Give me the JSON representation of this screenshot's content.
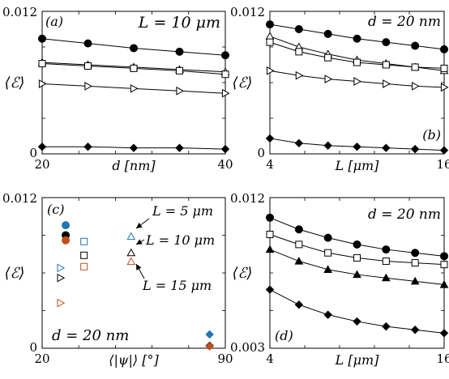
{
  "chart_data": [
    {
      "id": "a",
      "type": "line",
      "panel_label": "(a)",
      "annotation": "L = 10 μm",
      "xlabel": "d [nm]",
      "ylabel": "⟨ℰ⟩",
      "xlim": [
        20,
        40
      ],
      "ylim": [
        0,
        0.012
      ],
      "xticks": [
        "20",
        "40"
      ],
      "yticks": [
        "0",
        "0.012"
      ],
      "grid": false,
      "x": [
        20,
        25,
        30,
        35,
        40
      ],
      "series": [
        {
          "marker": "circle-filled",
          "values": [
            0.0097,
            0.0093,
            0.0089,
            0.0086,
            0.0083
          ]
        },
        {
          "marker": "triangle-up-open",
          "values": [
            0.0077,
            0.0075,
            0.0073,
            0.0071,
            0.0069
          ]
        },
        {
          "marker": "square-open",
          "values": [
            0.0076,
            0.0074,
            0.0072,
            0.007,
            0.0067
          ]
        },
        {
          "marker": "triangle-right-open",
          "values": [
            0.0059,
            0.0057,
            0.0055,
            0.0053,
            0.0051
          ]
        },
        {
          "marker": "diamond-filled",
          "values": [
            0.0006,
            0.0006,
            0.0005,
            0.0005,
            0.0004
          ]
        }
      ]
    },
    {
      "id": "b",
      "type": "line",
      "panel_label": "(b)",
      "annotation": "d = 20 nm",
      "xlabel": "L [μm]",
      "ylabel": "⟨ℰ⟩",
      "xlim": [
        4,
        16
      ],
      "ylim": [
        0,
        0.012
      ],
      "xticks": [
        "4",
        "16"
      ],
      "yticks": [
        "0",
        "0.012"
      ],
      "grid": false,
      "x": [
        4,
        6,
        8,
        10,
        12,
        14,
        16
      ],
      "series": [
        {
          "marker": "circle-filled",
          "values": [
            0.0109,
            0.0105,
            0.0101,
            0.0097,
            0.0094,
            0.0091,
            0.0088
          ]
        },
        {
          "marker": "triangle-up-open",
          "values": [
            0.0099,
            0.009,
            0.0084,
            0.0079,
            0.0076,
            0.0073,
            0.007
          ]
        },
        {
          "marker": "square-open",
          "values": [
            0.0094,
            0.0086,
            0.0081,
            0.0077,
            0.0075,
            0.0073,
            0.0072
          ]
        },
        {
          "marker": "triangle-right-open",
          "values": [
            0.007,
            0.0066,
            0.0063,
            0.0061,
            0.0059,
            0.0057,
            0.0056
          ]
        },
        {
          "marker": "diamond-filled",
          "values": [
            0.0013,
            0.0009,
            0.0007,
            0.0006,
            0.0005,
            0.0004,
            0.0003
          ]
        }
      ]
    },
    {
      "id": "c",
      "type": "scatter",
      "panel_label": "(c)",
      "annotation": "d = 20 nm",
      "xlabel": "⟨|ψ|⟩ [°]",
      "ylabel": "⟨ℰ⟩",
      "xlim": [
        20,
        90
      ],
      "ylim": [
        0,
        0.012
      ],
      "xticks": [
        "20",
        "90"
      ],
      "yticks": [
        "0",
        "0.012"
      ],
      "grid": false,
      "labels": [
        "L = 5 μm",
        "L = 10 μm",
        "L = 15 μm"
      ],
      "series": [
        {
          "marker": "circle-filled",
          "color": "#1f77b4",
          "points": [
            [
              29,
              0.0098
            ]
          ]
        },
        {
          "marker": "circle-filled",
          "color": "#000000",
          "points": [
            [
              29,
              0.009
            ]
          ]
        },
        {
          "marker": "circle-filled",
          "color": "#c0501b",
          "points": [
            [
              29,
              0.0086
            ]
          ]
        },
        {
          "marker": "square-open",
          "color": "#1f77b4",
          "points": [
            [
              36,
              0.0085
            ]
          ]
        },
        {
          "marker": "square-open",
          "color": "#000000",
          "points": [
            [
              36,
              0.0074
            ]
          ]
        },
        {
          "marker": "square-open",
          "color": "#c0501b",
          "points": [
            [
              36,
              0.0065
            ]
          ]
        },
        {
          "marker": "triangle-up-open",
          "color": "#1f77b4",
          "points": [
            [
              54,
              0.0089
            ]
          ]
        },
        {
          "marker": "triangle-up-open",
          "color": "#000000",
          "points": [
            [
              54,
              0.0076
            ]
          ]
        },
        {
          "marker": "triangle-up-open",
          "color": "#c0501b",
          "points": [
            [
              54,
              0.0069
            ]
          ]
        },
        {
          "marker": "triangle-right-open",
          "color": "#1f77b4",
          "points": [
            [
              27,
              0.0064
            ]
          ]
        },
        {
          "marker": "triangle-right-open",
          "color": "#000000",
          "points": [
            [
              27,
              0.0056
            ]
          ]
        },
        {
          "marker": "triangle-right-open",
          "color": "#c0501b",
          "points": [
            [
              27,
              0.0036
            ]
          ]
        },
        {
          "marker": "diamond-filled",
          "color": "#1f77b4",
          "points": [
            [
              84,
              0.0011
            ]
          ]
        },
        {
          "marker": "diamond-filled",
          "color": "#000000",
          "points": [
            [
              84,
              0.0002
            ]
          ]
        },
        {
          "marker": "diamond-filled",
          "color": "#c0501b",
          "points": [
            [
              84,
              0.00015
            ]
          ]
        }
      ]
    },
    {
      "id": "d",
      "type": "line",
      "panel_label": "(d)",
      "annotation": "d = 20 nm",
      "xlabel": "L [μm]",
      "ylabel": "⟨ℰ⟩",
      "xlim": [
        4,
        16
      ],
      "ylim": [
        0.003,
        0.012
      ],
      "xticks": [
        "4",
        "16"
      ],
      "yticks": [
        "0.003",
        "0.012"
      ],
      "grid": false,
      "x": [
        4,
        6,
        8,
        10,
        12,
        14,
        16
      ],
      "series": [
        {
          "marker": "circle-filled",
          "values": [
            0.0108,
            0.0101,
            0.0096,
            0.0092,
            0.0089,
            0.0087,
            0.0085
          ]
        },
        {
          "marker": "square-open",
          "values": [
            0.0098,
            0.0092,
            0.0087,
            0.0084,
            0.0082,
            0.0081,
            0.008
          ]
        },
        {
          "marker": "triangle-up-filled",
          "values": [
            0.0089,
            0.0082,
            0.0077,
            0.0074,
            0.0072,
            0.007,
            0.0068
          ]
        },
        {
          "marker": "diamond-filled",
          "values": [
            0.0065,
            0.0056,
            0.005,
            0.0046,
            0.0043,
            0.0041,
            0.0039
          ]
        }
      ]
    }
  ]
}
